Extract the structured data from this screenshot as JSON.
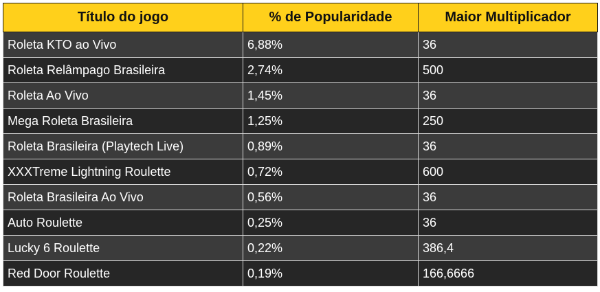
{
  "table": {
    "headers": [
      "Título do jogo",
      "% de Popularidade",
      "Maior Multiplicador"
    ],
    "rows": [
      [
        "Roleta KTO ao Vivo",
        "6,88%",
        "36"
      ],
      [
        "Roleta Relâmpago Brasileira",
        "2,74%",
        "500"
      ],
      [
        "Roleta Ao Vivo",
        "1,45%",
        "36"
      ],
      [
        "Mega Roleta Brasileira",
        "1,25%",
        "250"
      ],
      [
        "Roleta Brasileira (Playtech Live)",
        "0,89%",
        "36"
      ],
      [
        "XXXTreme Lightning Roulette",
        "0,72%",
        "600"
      ],
      [
        "Roleta Brasileira Ao Vivo",
        "0,56%",
        "36"
      ],
      [
        "Auto Roulette",
        "0,25%",
        "36"
      ],
      [
        "Lucky 6 Roulette",
        "0,22%",
        "386,4"
      ],
      [
        "Red Door Roulette",
        "0,19%",
        "166,6666"
      ]
    ]
  },
  "colors": {
    "header_bg": "#ffd01b",
    "row_odd_bg": "#3b3b3b",
    "row_even_bg": "#262626",
    "cell_text": "#ffffff"
  }
}
